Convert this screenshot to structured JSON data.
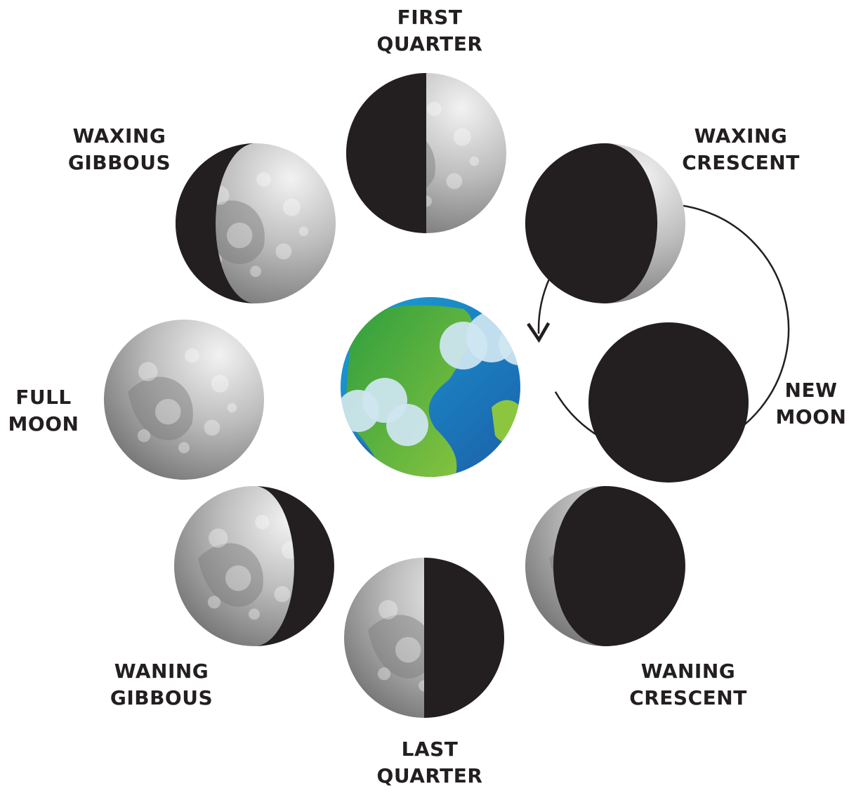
{
  "diagram": {
    "phases": [
      {
        "id": "first-quarter",
        "lines": [
          "FIRST",
          "QUARTER"
        ],
        "lit": "right",
        "shape": "half"
      },
      {
        "id": "waxing-crescent",
        "lines": [
          "WAXING",
          "CRESCENT"
        ],
        "lit": "right",
        "shape": "crescent"
      },
      {
        "id": "new-moon",
        "lines": [
          "NEW",
          "MOON"
        ],
        "lit": "none",
        "shape": "dark"
      },
      {
        "id": "waning-crescent",
        "lines": [
          "WANING",
          "CRESCENT"
        ],
        "lit": "left",
        "shape": "crescent"
      },
      {
        "id": "last-quarter",
        "lines": [
          "LAST",
          "QUARTER"
        ],
        "lit": "left",
        "shape": "half"
      },
      {
        "id": "waning-gibbous",
        "lines": [
          "WANING",
          "GIBBOUS"
        ],
        "lit": "left",
        "shape": "gibbous"
      },
      {
        "id": "full-moon",
        "lines": [
          "FULL",
          "MOON"
        ],
        "lit": "full",
        "shape": "full"
      },
      {
        "id": "waxing-gibbous",
        "lines": [
          "WAXING",
          "GIBBOUS"
        ],
        "lit": "right",
        "shape": "gibbous"
      }
    ],
    "center": {
      "icon": "earth-icon"
    },
    "orbit": {
      "icon": "orbit-arrow-icon",
      "direction": "counterclockwise"
    },
    "colors": {
      "shadow": "#231f20",
      "moon_light": "#e6e6e6",
      "moon_dark": "#8a8a8a",
      "earth_ocean": "#1c8fcf",
      "earth_land": "#3aaa3c",
      "earth_cloud": "#cfe6f2",
      "label": "#231f20"
    }
  }
}
